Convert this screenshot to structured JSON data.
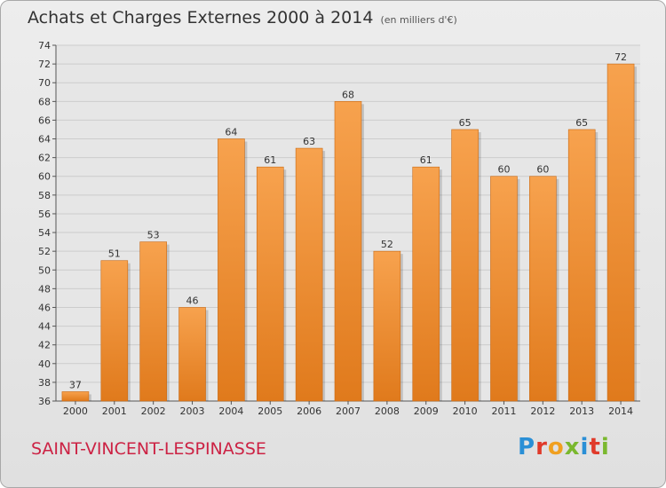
{
  "title": "Achats et Charges Externes 2000 à 2014",
  "subtitle": "(en milliers d'€)",
  "commune": "SAINT-VINCENT-LESPINASSE",
  "logo": {
    "letters": [
      "P",
      "r",
      "o",
      "x",
      "i",
      "t",
      "i"
    ],
    "colors": [
      "#2a8fd6",
      "#e03a2a",
      "#f0a020",
      "#7ab82e",
      "#2a8fd6",
      "#e03a2a",
      "#7ab82e"
    ]
  },
  "colors": {
    "bar_light": "#f7a24e",
    "bar_dark": "#e07a1c",
    "grid": "#cccccc"
  },
  "chart_data": {
    "type": "bar",
    "title": "Achats et Charges Externes 2000 à 2014",
    "categories": [
      "2000",
      "2001",
      "2002",
      "2003",
      "2004",
      "2005",
      "2006",
      "2007",
      "2008",
      "2009",
      "2010",
      "2011",
      "2012",
      "2013",
      "2014"
    ],
    "values": [
      37,
      51,
      53,
      46,
      64,
      61,
      63,
      68,
      52,
      61,
      65,
      60,
      60,
      65,
      72
    ],
    "ylim": [
      36,
      74
    ],
    "yticks": [
      36,
      38,
      40,
      42,
      44,
      46,
      48,
      50,
      52,
      54,
      56,
      58,
      60,
      62,
      64,
      66,
      68,
      70,
      72,
      74
    ],
    "grid": true,
    "data_labels": true
  }
}
